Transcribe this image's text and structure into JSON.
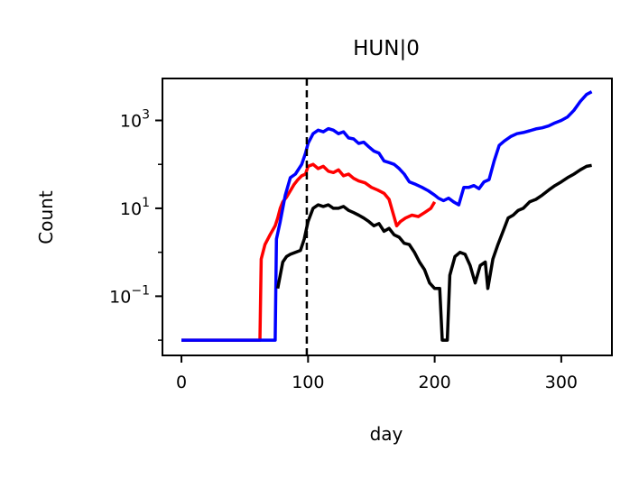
{
  "chart_data": {
    "type": "line",
    "title": "HUN|0",
    "xlabel": "day",
    "ylabel": "Count",
    "xlim": [
      -15,
      340
    ],
    "ylim": [
      0.0045,
      9000
    ],
    "yscale": "log",
    "xticks": [
      0,
      100,
      200,
      300
    ],
    "xtick_labels": [
      "0",
      "100",
      "200",
      "300"
    ],
    "yticks": [
      0.1,
      10,
      1000
    ],
    "ytick_labels": [
      {
        "base": "10",
        "exp": "−1"
      },
      {
        "base": "10",
        "exp": "1"
      },
      {
        "base": "10",
        "exp": "3"
      }
    ],
    "vline": {
      "x": 99,
      "style": "dashed",
      "color": "#000000"
    },
    "legend": "none",
    "grid": false,
    "series": [
      {
        "color": "#ff0000",
        "points": [
          [
            0,
            0.01
          ],
          [
            62,
            0.01
          ],
          [
            63,
            0.7
          ],
          [
            66,
            1.5
          ],
          [
            70,
            2.5
          ],
          [
            74,
            4
          ],
          [
            76,
            6
          ],
          [
            78,
            10
          ],
          [
            80,
            14
          ],
          [
            83,
            18
          ],
          [
            86,
            25
          ],
          [
            89,
            35
          ],
          [
            92,
            45
          ],
          [
            95,
            55
          ],
          [
            98,
            60
          ],
          [
            100,
            90
          ],
          [
            104,
            100
          ],
          [
            108,
            80
          ],
          [
            112,
            90
          ],
          [
            116,
            70
          ],
          [
            120,
            65
          ],
          [
            124,
            75
          ],
          [
            128,
            55
          ],
          [
            132,
            60
          ],
          [
            136,
            48
          ],
          [
            140,
            42
          ],
          [
            145,
            38
          ],
          [
            150,
            30
          ],
          [
            155,
            26
          ],
          [
            160,
            22
          ],
          [
            164,
            16
          ],
          [
            167,
            8
          ],
          [
            170,
            4
          ],
          [
            173,
            5
          ],
          [
            177,
            6
          ],
          [
            182,
            7
          ],
          [
            187,
            6.5
          ],
          [
            192,
            8
          ],
          [
            197,
            10
          ],
          [
            200,
            14
          ]
        ]
      },
      {
        "color": "#0000ff",
        "points": [
          [
            0,
            0.01
          ],
          [
            74,
            0.01
          ],
          [
            75,
            2
          ],
          [
            78,
            5
          ],
          [
            82,
            20
          ],
          [
            86,
            50
          ],
          [
            90,
            60
          ],
          [
            95,
            100
          ],
          [
            98,
            180
          ],
          [
            100,
            300
          ],
          [
            104,
            500
          ],
          [
            108,
            600
          ],
          [
            112,
            550
          ],
          [
            116,
            650
          ],
          [
            120,
            600
          ],
          [
            124,
            500
          ],
          [
            128,
            550
          ],
          [
            132,
            400
          ],
          [
            136,
            380
          ],
          [
            140,
            300
          ],
          [
            144,
            320
          ],
          [
            148,
            250
          ],
          [
            152,
            200
          ],
          [
            156,
            180
          ],
          [
            160,
            120
          ],
          [
            164,
            110
          ],
          [
            168,
            100
          ],
          [
            172,
            80
          ],
          [
            176,
            60
          ],
          [
            180,
            40
          ],
          [
            185,
            35
          ],
          [
            190,
            30
          ],
          [
            195,
            25
          ],
          [
            200,
            20
          ],
          [
            203,
            17
          ],
          [
            207,
            15
          ],
          [
            211,
            17
          ],
          [
            215,
            14
          ],
          [
            219,
            12
          ],
          [
            223,
            30
          ],
          [
            227,
            30
          ],
          [
            231,
            33
          ],
          [
            235,
            28
          ],
          [
            239,
            40
          ],
          [
            243,
            45
          ],
          [
            247,
            120
          ],
          [
            251,
            270
          ],
          [
            255,
            340
          ],
          [
            260,
            430
          ],
          [
            265,
            500
          ],
          [
            270,
            530
          ],
          [
            275,
            580
          ],
          [
            280,
            640
          ],
          [
            285,
            680
          ],
          [
            290,
            750
          ],
          [
            295,
            880
          ],
          [
            300,
            1000
          ],
          [
            305,
            1200
          ],
          [
            310,
            1700
          ],
          [
            315,
            2700
          ],
          [
            320,
            3900
          ],
          [
            324,
            4500
          ]
        ]
      },
      {
        "color": "#000000",
        "points": [
          [
            76,
            0.15
          ],
          [
            78,
            0.3
          ],
          [
            80,
            0.6
          ],
          [
            83,
            0.8
          ],
          [
            86,
            0.9
          ],
          [
            90,
            1.0
          ],
          [
            94,
            1.1
          ],
          [
            97,
            2
          ],
          [
            100,
            5
          ],
          [
            104,
            10
          ],
          [
            108,
            12
          ],
          [
            112,
            11
          ],
          [
            116,
            12
          ],
          [
            120,
            10
          ],
          [
            124,
            10
          ],
          [
            128,
            11
          ],
          [
            132,
            9
          ],
          [
            136,
            8
          ],
          [
            140,
            7
          ],
          [
            144,
            6
          ],
          [
            148,
            5
          ],
          [
            152,
            4
          ],
          [
            156,
            4.5
          ],
          [
            160,
            3
          ],
          [
            164,
            3.5
          ],
          [
            168,
            2.5
          ],
          [
            172,
            2.2
          ],
          [
            176,
            1.6
          ],
          [
            180,
            1.5
          ],
          [
            184,
            1.0
          ],
          [
            188,
            0.6
          ],
          [
            192,
            0.4
          ],
          [
            196,
            0.2
          ],
          [
            200,
            0.15
          ],
          [
            204,
            0.15
          ],
          [
            206,
            0.01
          ],
          [
            210,
            0.01
          ],
          [
            212,
            0.3
          ],
          [
            216,
            0.8
          ],
          [
            220,
            1.0
          ],
          [
            224,
            0.9
          ],
          [
            228,
            0.5
          ],
          [
            232,
            0.2
          ],
          [
            236,
            0.5
          ],
          [
            240,
            0.6
          ],
          [
            242,
            0.15
          ],
          [
            246,
            0.7
          ],
          [
            250,
            1.5
          ],
          [
            254,
            3
          ],
          [
            258,
            6
          ],
          [
            262,
            7
          ],
          [
            266,
            9
          ],
          [
            270,
            10
          ],
          [
            275,
            14
          ],
          [
            280,
            16
          ],
          [
            285,
            20
          ],
          [
            290,
            26
          ],
          [
            295,
            33
          ],
          [
            300,
            40
          ],
          [
            305,
            50
          ],
          [
            310,
            60
          ],
          [
            315,
            75
          ],
          [
            320,
            90
          ],
          [
            324,
            95
          ]
        ]
      }
    ]
  }
}
